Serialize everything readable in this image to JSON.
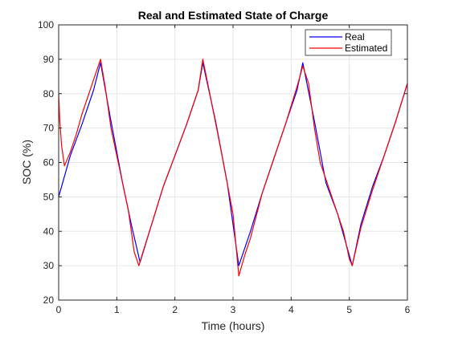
{
  "chart_data": {
    "type": "line",
    "title": "Real and Estimated State of Charge",
    "xlabel": "Time (hours)",
    "ylabel": "SOC (%)",
    "xlim": [
      0,
      6
    ],
    "ylim": [
      20,
      100
    ],
    "xticks": [
      0,
      1,
      2,
      3,
      4,
      5,
      6
    ],
    "yticks": [
      20,
      30,
      40,
      50,
      60,
      70,
      80,
      90,
      100
    ],
    "grid": true,
    "legend_position": "top-right",
    "series": [
      {
        "name": "Real",
        "color": "#0000ff",
        "x": [
          0,
          0.2,
          0.4,
          0.6,
          0.72,
          0.9,
          1.1,
          1.25,
          1.4,
          1.6,
          1.8,
          2.0,
          2.2,
          2.4,
          2.48,
          2.7,
          2.9,
          3.1,
          3.3,
          3.5,
          3.7,
          3.9,
          4.1,
          4.2,
          4.4,
          4.6,
          4.8,
          5.05,
          5.2,
          5.4,
          5.6,
          5.8,
          6.0
        ],
        "y": [
          50,
          62,
          71,
          81,
          89,
          72,
          54,
          42,
          31,
          42,
          53,
          62,
          71,
          81,
          89,
          72,
          54,
          30,
          40,
          51,
          61,
          71,
          81,
          89,
          72,
          54,
          45,
          30,
          42,
          53,
          62,
          72,
          83
        ]
      },
      {
        "name": "Estimated",
        "color": "#ff0000",
        "x": [
          0,
          0.02,
          0.05,
          0.1,
          0.15,
          0.2,
          0.3,
          0.4,
          0.5,
          0.6,
          0.72,
          0.8,
          0.9,
          1.0,
          1.1,
          1.2,
          1.25,
          1.3,
          1.38,
          1.45,
          1.6,
          1.8,
          2.0,
          2.2,
          2.4,
          2.48,
          2.6,
          2.8,
          3.0,
          3.1,
          3.2,
          3.3,
          3.5,
          3.7,
          3.9,
          4.1,
          4.2,
          4.3,
          4.4,
          4.5,
          4.7,
          4.9,
          5.0,
          5.05,
          5.2,
          5.4,
          5.6,
          5.8,
          6.0
        ],
        "y": [
          80,
          72,
          65,
          59,
          61,
          63,
          68,
          74,
          79,
          84,
          90,
          82,
          70,
          62,
          54,
          46,
          40,
          34,
          30,
          34,
          42,
          53,
          62,
          71,
          81,
          90,
          80,
          63,
          45,
          27,
          33,
          38,
          51,
          61,
          71,
          82,
          88,
          83,
          70,
          60,
          50,
          40,
          32,
          30,
          41,
          52,
          62,
          72,
          83
        ]
      }
    ]
  }
}
